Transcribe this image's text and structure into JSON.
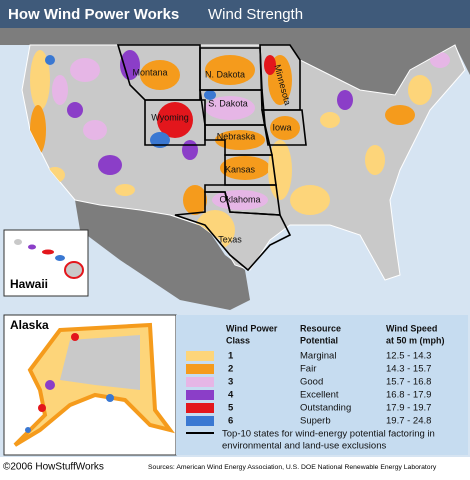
{
  "header": {
    "title": "How Wind Power Works",
    "subtitle": "Wind Strength"
  },
  "states": [
    "Montana",
    "N. Dakota",
    "Minnesota",
    "S. Dakota",
    "Wyoming",
    "Nebraska",
    "Iowa",
    "Kansas",
    "Oklahoma",
    "Texas"
  ],
  "insets": {
    "hawaii": "Hawaii",
    "alaska": "Alaska"
  },
  "legend": {
    "headers": [
      [
        "Wind Power",
        "Class"
      ],
      [
        "Resource",
        "Potential"
      ],
      [
        "Wind Speed",
        "at 50 m (mph)"
      ]
    ],
    "rows": [
      {
        "color": "#fdd57a",
        "class": "1",
        "potential": "Marginal",
        "speed": "12.5 - 14.3"
      },
      {
        "color": "#f59b1c",
        "class": "2",
        "potential": "Fair",
        "speed": "14.3 - 15.7"
      },
      {
        "color": "#e6b6e6",
        "class": "3",
        "potential": "Good",
        "speed": "15.7 - 16.8"
      },
      {
        "color": "#8b3ec8",
        "class": "4",
        "potential": "Excellent",
        "speed": "16.8 - 17.9"
      },
      {
        "color": "#e3161c",
        "class": "5",
        "potential": "Outstanding",
        "speed": "17.9 - 19.7"
      },
      {
        "color": "#3a78d2",
        "class": "6",
        "potential": "Superb",
        "speed": "19.7 - 24.8"
      }
    ],
    "note": [
      "Top-10 states for wind-energy potential factoring in",
      "environmental and land-use exclusions"
    ]
  },
  "footer": {
    "copyright": "©2006 HowStuffWorks",
    "sources": "Sources: American Wind Energy Association, U.S. DOE National Renewable Energy Laboratory"
  }
}
